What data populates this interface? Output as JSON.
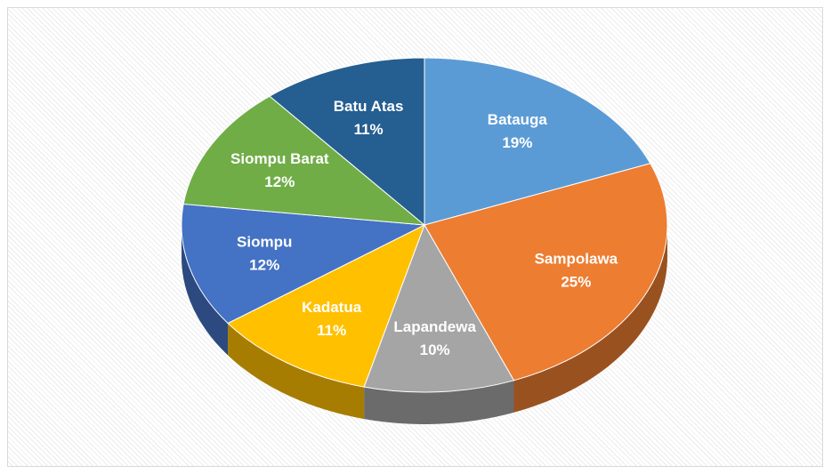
{
  "chart_data": {
    "type": "pie",
    "categories": [
      "Batauga",
      "Sampolawa",
      "Lapandewa",
      "Kadatua",
      "Siompu",
      "Siompu Barat",
      "Batu Atas"
    ],
    "values": [
      19,
      25,
      10,
      11,
      12,
      12,
      11
    ],
    "value_labels": [
      "19%",
      "25%",
      "10%",
      "11%",
      "12%",
      "12%",
      "11%"
    ],
    "colors": [
      "#5b9bd5",
      "#ed7d31",
      "#a5a5a5",
      "#ffc000",
      "#4472c4",
      "#70ad47",
      "#255e91"
    ]
  }
}
